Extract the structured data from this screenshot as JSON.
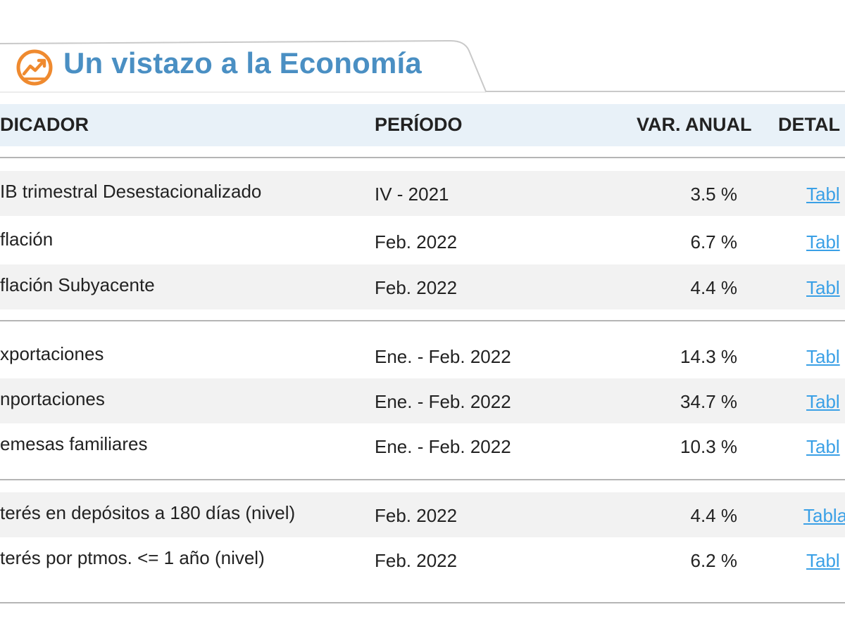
{
  "header": {
    "title": "Un vistazo a la Economía",
    "icon": "trend-chart-icon",
    "accent_color": "#4a8fc3",
    "icon_color": "#ef8a2f"
  },
  "table": {
    "columns": {
      "indicator": "DICADOR",
      "period": "PERÍODO",
      "annual_var": "VAR. ANUAL",
      "detail": "DETAL"
    },
    "groups": [
      {
        "rows": [
          {
            "indicator": "IB trimestral Desestacionalizado",
            "period": "IV - 2021",
            "annual_var": "3.5 %",
            "detail": "Tabl"
          },
          {
            "indicator": "flación",
            "period": "Feb. 2022",
            "annual_var": "6.7 %",
            "detail": "Tabl"
          },
          {
            "indicator": "flación Subyacente",
            "period": "Feb. 2022",
            "annual_var": "4.4 %",
            "detail": "Tabl"
          }
        ]
      },
      {
        "rows": [
          {
            "indicator": "xportaciones",
            "period": "Ene. - Feb. 2022",
            "annual_var": "14.3 %",
            "detail": "Tabl"
          },
          {
            "indicator": "nportaciones",
            "period": "Ene. - Feb. 2022",
            "annual_var": "34.7 %",
            "detail": "Tabl"
          },
          {
            "indicator": "emesas familiares",
            "period": "Ene. - Feb. 2022",
            "annual_var": "10.3 %",
            "detail": "Tabl"
          }
        ]
      },
      {
        "rows": [
          {
            "indicator": "terés en depósitos a 180 días (nivel)",
            "period": "Feb. 2022",
            "annual_var": "4.4 %",
            "detail": "Tabla"
          },
          {
            "indicator": "terés por ptmos. <= 1 año (nivel)",
            "period": "Feb. 2022",
            "annual_var": "6.2 %",
            "detail": "Tabl"
          }
        ]
      }
    ]
  }
}
